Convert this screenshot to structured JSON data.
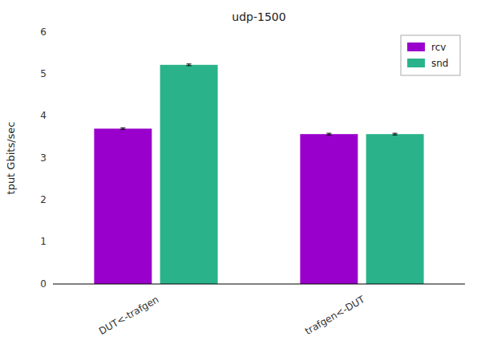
{
  "chart_data": {
    "type": "bar",
    "title": "udp-1500",
    "ylabel": "tput Gbits/sec",
    "categories": [
      "DUT<-trafgen",
      "trafgen<-DUT"
    ],
    "series": [
      {
        "name": "rcv",
        "color": "#9900cc",
        "values": [
          3.7,
          3.57
        ],
        "errors": [
          0.02,
          0.02
        ]
      },
      {
        "name": "snd",
        "color": "#2ab38a",
        "values": [
          5.22,
          3.57
        ],
        "errors": [
          0.02,
          0.02
        ]
      }
    ],
    "ylim": [
      0,
      6
    ],
    "yticks": [
      0,
      1,
      2,
      3,
      4,
      5,
      6
    ],
    "grid": false,
    "legend": "upper right"
  }
}
